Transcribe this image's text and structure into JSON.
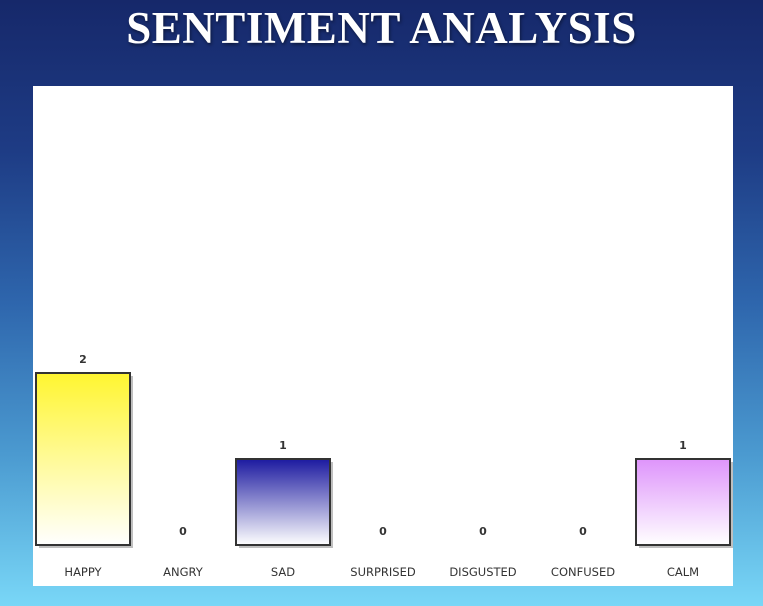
{
  "title": "SENTIMENT ANALYSIS",
  "chart_data": {
    "type": "bar",
    "categories": [
      "HAPPY",
      "ANGRY",
      "SAD",
      "SURPRISED",
      "DISGUSTED",
      "CONFUSED",
      "CALM"
    ],
    "values": [
      2,
      0,
      1,
      0,
      0,
      0,
      1
    ],
    "title": "SENTIMENT ANALYSIS",
    "xlabel": "",
    "ylabel": "",
    "grid": false,
    "bar_colors": [
      {
        "top": "#fff530",
        "bottom": "#ffffff"
      },
      {
        "top": "#ff6060",
        "bottom": "#ffffff"
      },
      {
        "top": "#1c1aa0",
        "bottom": "#ffffff"
      },
      {
        "top": "#ffb040",
        "bottom": "#ffffff"
      },
      {
        "top": "#40b040",
        "bottom": "#ffffff"
      },
      {
        "top": "#a060ff",
        "bottom": "#ffffff"
      },
      {
        "top": "#de94fb",
        "bottom": "#ffffff"
      }
    ]
  }
}
